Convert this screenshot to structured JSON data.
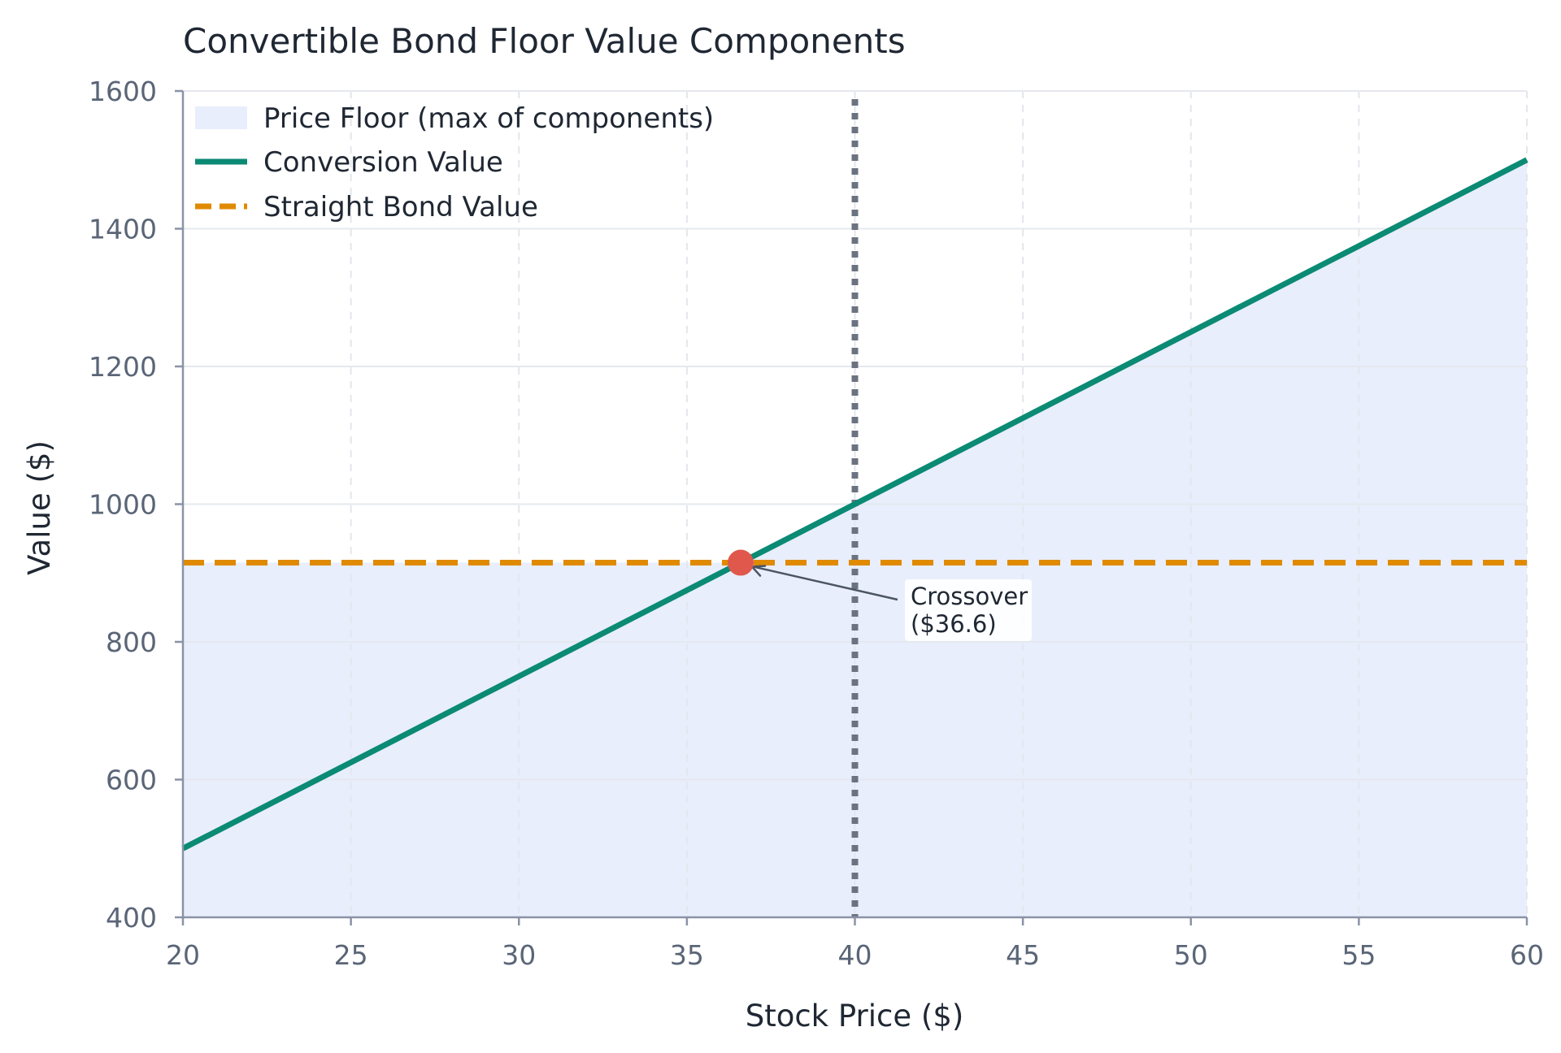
{
  "chart_data": {
    "type": "line",
    "title": "Convertible Bond Floor Value Components",
    "xlabel": "Stock Price ($)",
    "ylabel": "Value ($)",
    "xlim": [
      20,
      60
    ],
    "ylim": [
      400,
      1600
    ],
    "x_ticks": [
      20,
      25,
      30,
      35,
      40,
      45,
      50,
      55,
      60
    ],
    "y_ticks": [
      400,
      600,
      800,
      1000,
      1200,
      1400,
      1600
    ],
    "grid": true,
    "legend_position": "top-left",
    "series": [
      {
        "name": "Price Floor (max of components)",
        "kind": "area",
        "color": "#e8eefc",
        "x": [
          20,
          36.6,
          60
        ],
        "values": [
          915,
          915,
          1500
        ]
      },
      {
        "name": "Conversion Value",
        "kind": "line",
        "style": "solid",
        "color": "#0b8a74",
        "x": [
          20,
          60
        ],
        "values": [
          500,
          1500
        ]
      },
      {
        "name": "Straight Bond Value",
        "kind": "line",
        "style": "dashed",
        "color": "#e08a00",
        "x": [
          20,
          60
        ],
        "values": [
          915,
          915
        ]
      }
    ],
    "reference_line": {
      "x": 40,
      "style": "dotted",
      "color": "#6b7280"
    },
    "crossover": {
      "x": 36.6,
      "y": 915,
      "color": "#e0574b",
      "label_line1": "Crossover",
      "label_line2": "($36.6)"
    }
  }
}
